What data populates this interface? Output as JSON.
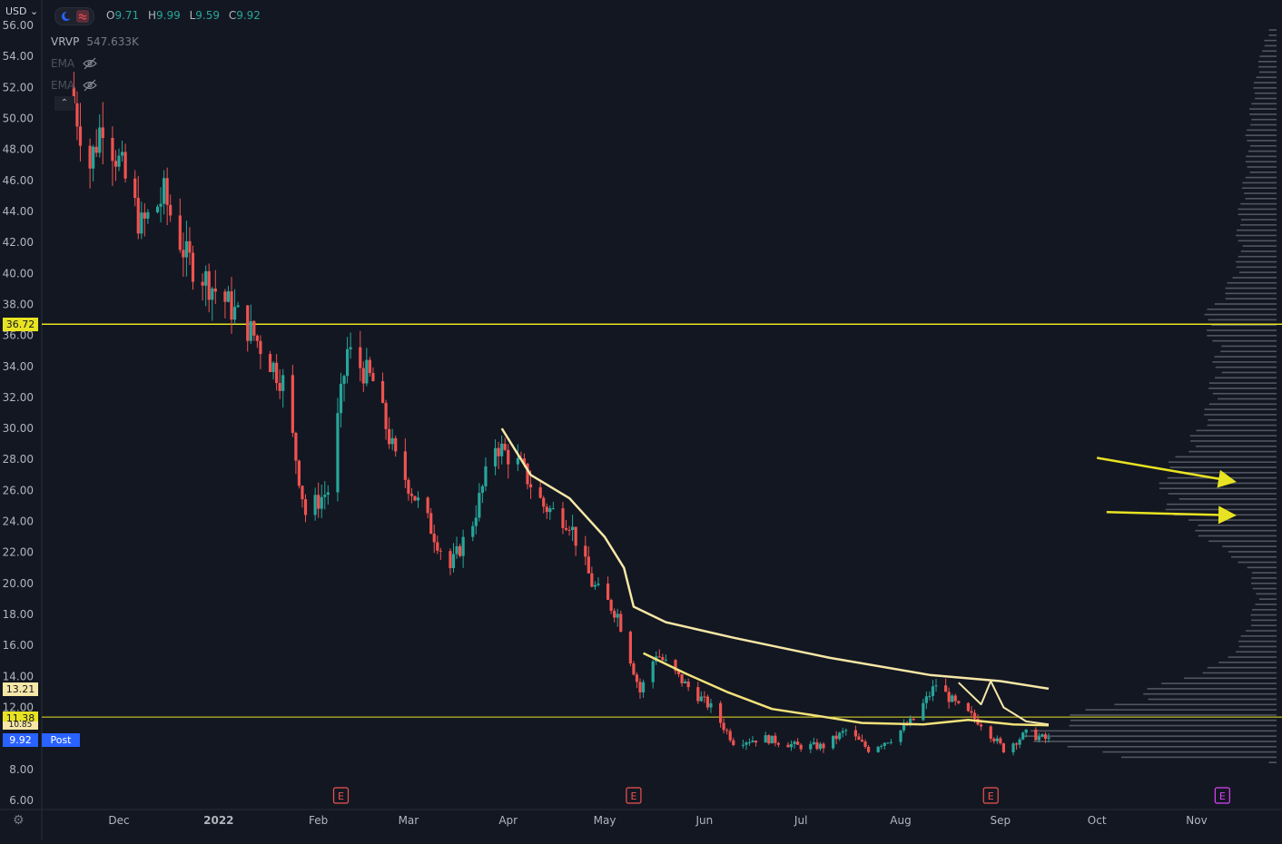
{
  "header": {
    "currency": "USD",
    "ohlc": {
      "o_label": "O",
      "o": "9.71",
      "h_label": "H",
      "h": "9.99",
      "l_label": "L",
      "l": "9.59",
      "c_label": "C",
      "c": "9.92"
    }
  },
  "legend": {
    "vrvp_label": "VRVP",
    "vrvp_value": "547.633K",
    "ema1_label": "EMA",
    "ema2_label": "EMA"
  },
  "price_tags": {
    "level_high": "36.72",
    "ema_long": "13.21",
    "level_low": "11.38",
    "ema_short": "10.85",
    "last": "9.92",
    "post": "Post"
  },
  "colors": {
    "background": "#131722",
    "up": "#26a69a",
    "down": "#ef5350",
    "hline": "#e8e322",
    "ema": "#f6e7a6",
    "axis_text": "#b2b5be",
    "post_badge": "#2962ff",
    "volume_profile": "#5d606b"
  },
  "chart_data": {
    "type": "candlestick",
    "y_ticks": [
      "56.00",
      "54.00",
      "52.00",
      "50.00",
      "48.00",
      "46.00",
      "44.00",
      "42.00",
      "40.00",
      "38.00",
      "36.00",
      "34.00",
      "32.00",
      "30.00",
      "28.00",
      "26.00",
      "24.00",
      "22.00",
      "20.00",
      "18.00",
      "16.00",
      "14.00",
      "12.00",
      "10.00",
      "8.00",
      "6.00"
    ],
    "y_tick_values": [
      56,
      54,
      52,
      50,
      48,
      46,
      44,
      42,
      40,
      38,
      36,
      34,
      32,
      30,
      28,
      26,
      24,
      22,
      20,
      18,
      16,
      14,
      12,
      10,
      8,
      6
    ],
    "ylim": [
      6,
      56.5
    ],
    "x_tick_labels": [
      "Dec",
      "2022",
      "Feb",
      "Mar",
      "Apr",
      "May",
      "Jun",
      "Jul",
      "Aug",
      "Sep",
      "Oct",
      "Nov"
    ],
    "x_tick_dates": [
      "2021-12-01",
      "2022-01-01",
      "2022-02-01",
      "2022-03-01",
      "2022-04-01",
      "2022-05-01",
      "2022-06-01",
      "2022-07-01",
      "2022-08-01",
      "2022-09-01",
      "2022-10-01",
      "2022-11-01"
    ],
    "horizontal_lines": [
      36.72,
      11.38
    ],
    "earnings_markers": [
      "2022-02-08",
      "2022-05-10",
      "2022-08-29",
      "2022-11-09"
    ],
    "earnings_label": "E",
    "anchors": [
      {
        "date": "2021-11-17",
        "price": 51
      },
      {
        "date": "2021-11-22",
        "price": 47
      },
      {
        "date": "2021-11-26",
        "price": 50
      },
      {
        "date": "2021-12-03",
        "price": 46
      },
      {
        "date": "2021-12-08",
        "price": 43
      },
      {
        "date": "2021-12-15",
        "price": 45
      },
      {
        "date": "2021-12-22",
        "price": 41
      },
      {
        "date": "2022-01-04",
        "price": 38
      },
      {
        "date": "2022-01-12",
        "price": 36
      },
      {
        "date": "2022-01-21",
        "price": 33
      },
      {
        "date": "2022-01-28",
        "price": 24.5
      },
      {
        "date": "2022-02-04",
        "price": 26
      },
      {
        "date": "2022-02-10",
        "price": 35
      },
      {
        "date": "2022-02-18",
        "price": 33
      },
      {
        "date": "2022-02-25",
        "price": 28
      },
      {
        "date": "2022-03-07",
        "price": 24
      },
      {
        "date": "2022-03-14",
        "price": 21
      },
      {
        "date": "2022-03-21",
        "price": 24
      },
      {
        "date": "2022-03-28",
        "price": 29
      },
      {
        "date": "2022-04-05",
        "price": 27.5
      },
      {
        "date": "2022-04-12",
        "price": 25
      },
      {
        "date": "2022-04-20",
        "price": 24
      },
      {
        "date": "2022-04-27",
        "price": 20
      },
      {
        "date": "2022-05-05",
        "price": 18
      },
      {
        "date": "2022-05-12",
        "price": 13
      },
      {
        "date": "2022-05-17",
        "price": 15.5
      },
      {
        "date": "2022-05-26",
        "price": 13.5
      },
      {
        "date": "2022-06-03",
        "price": 12
      },
      {
        "date": "2022-06-10",
        "price": 9.8
      },
      {
        "date": "2022-06-20",
        "price": 10
      },
      {
        "date": "2022-06-30",
        "price": 9.5
      },
      {
        "date": "2022-07-08",
        "price": 9.5
      },
      {
        "date": "2022-07-15",
        "price": 10.5
      },
      {
        "date": "2022-07-22",
        "price": 9.3
      },
      {
        "date": "2022-07-29",
        "price": 10
      },
      {
        "date": "2022-08-05",
        "price": 11.2
      },
      {
        "date": "2022-08-12",
        "price": 13.5
      },
      {
        "date": "2022-08-19",
        "price": 12
      },
      {
        "date": "2022-08-26",
        "price": 11
      },
      {
        "date": "2022-09-02",
        "price": 9.3
      },
      {
        "date": "2022-09-09",
        "price": 10.3
      },
      {
        "date": "2022-09-16",
        "price": 9.92
      }
    ],
    "ema_long": [
      {
        "date": "2022-03-30",
        "price": 30
      },
      {
        "date": "2022-04-08",
        "price": 27
      },
      {
        "date": "2022-04-20",
        "price": 25.5
      },
      {
        "date": "2022-05-01",
        "price": 23
      },
      {
        "date": "2022-05-07",
        "price": 21
      },
      {
        "date": "2022-05-10",
        "price": 18.5
      },
      {
        "date": "2022-05-20",
        "price": 17.5
      },
      {
        "date": "2022-06-10",
        "price": 16.5
      },
      {
        "date": "2022-07-10",
        "price": 15.2
      },
      {
        "date": "2022-08-10",
        "price": 14.1
      },
      {
        "date": "2022-09-01",
        "price": 13.7
      },
      {
        "date": "2022-09-16",
        "price": 13.21
      }
    ],
    "ema_short": [
      {
        "date": "2022-05-13",
        "price": 15.5
      },
      {
        "date": "2022-05-26",
        "price": 14.2
      },
      {
        "date": "2022-06-08",
        "price": 13.0
      },
      {
        "date": "2022-06-22",
        "price": 11.9
      },
      {
        "date": "2022-07-08",
        "price": 11.4
      },
      {
        "date": "2022-07-20",
        "price": 11.0
      },
      {
        "date": "2022-08-08",
        "price": 10.9
      },
      {
        "date": "2022-08-22",
        "price": 11.2
      },
      {
        "date": "2022-09-05",
        "price": 10.9
      },
      {
        "date": "2022-09-16",
        "price": 10.85
      }
    ],
    "ema_mid": [
      {
        "date": "2022-08-19",
        "price": 13.6
      },
      {
        "date": "2022-08-26",
        "price": 12.2
      },
      {
        "date": "2022-08-29",
        "price": 13.7
      },
      {
        "date": "2022-09-02",
        "price": 12.0
      },
      {
        "date": "2022-09-09",
        "price": 11.1
      },
      {
        "date": "2022-09-16",
        "price": 10.9
      }
    ],
    "volume_profile_levels": [
      {
        "price": 55,
        "rel": 0.05
      },
      {
        "price": 53,
        "rel": 0.08
      },
      {
        "price": 51,
        "rel": 0.1
      },
      {
        "price": 49,
        "rel": 0.12
      },
      {
        "price": 47,
        "rel": 0.12
      },
      {
        "price": 45,
        "rel": 0.14
      },
      {
        "price": 43,
        "rel": 0.16
      },
      {
        "price": 41,
        "rel": 0.15
      },
      {
        "price": 39,
        "rel": 0.2
      },
      {
        "price": 37,
        "rel": 0.3
      },
      {
        "price": 35,
        "rel": 0.24
      },
      {
        "price": 33,
        "rel": 0.26
      },
      {
        "price": 31,
        "rel": 0.28
      },
      {
        "price": 29,
        "rel": 0.35
      },
      {
        "price": 27,
        "rel": 0.46
      },
      {
        "price": 25,
        "rel": 0.45
      },
      {
        "price": 23,
        "rel": 0.3
      },
      {
        "price": 21,
        "rel": 0.12
      },
      {
        "price": 19,
        "rel": 0.08
      },
      {
        "price": 17,
        "rel": 0.12
      },
      {
        "price": 15,
        "rel": 0.2
      },
      {
        "price": 13.5,
        "rel": 0.45
      },
      {
        "price": 12.5,
        "rel": 0.6
      },
      {
        "price": 11.5,
        "rel": 0.8
      },
      {
        "price": 10.5,
        "rel": 1.0
      },
      {
        "price": 9.5,
        "rel": 0.95
      },
      {
        "price": 8.7,
        "rel": 0.6
      }
    ],
    "annotation_arrows": [
      {
        "from_price": 28.1,
        "to_price": 26.6,
        "from_date": "2022-10-01",
        "to_date": "2022-11-12"
      },
      {
        "from_price": 24.6,
        "to_price": 24.4,
        "from_date": "2022-10-04",
        "to_date": "2022-11-12"
      }
    ]
  }
}
